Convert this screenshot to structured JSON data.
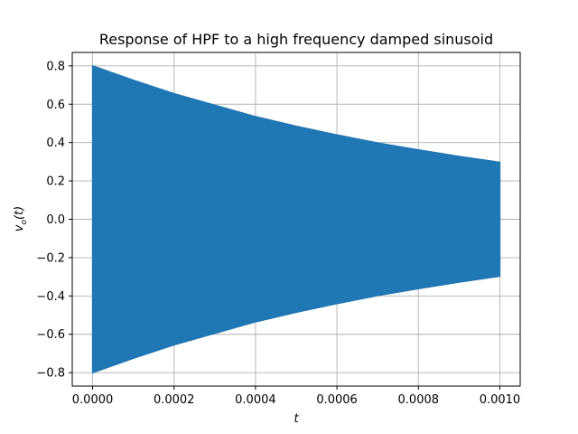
{
  "chart_data": {
    "type": "line",
    "title": "Response of HPF to a high frequency damped sinusoid",
    "xlabel": "t",
    "ylabel": "v_o(t)",
    "xlim": [
      -5e-05,
      0.00105
    ],
    "ylim": [
      -0.87,
      0.87
    ],
    "x_ticks": [
      0.0,
      0.0002,
      0.0004,
      0.0006,
      0.0008,
      0.001
    ],
    "x_tick_labels": [
      "0.0000",
      "0.0002",
      "0.0004",
      "0.0006",
      "0.0008",
      "0.0010"
    ],
    "y_ticks": [
      -0.8,
      -0.6,
      -0.4,
      -0.2,
      0.0,
      0.2,
      0.4,
      0.6,
      0.8
    ],
    "y_tick_labels": [
      "−0.8",
      "−0.6",
      "−0.4",
      "−0.2",
      "0.0",
      "0.2",
      "0.4",
      "0.6",
      "0.8"
    ],
    "grid": true,
    "series": [
      {
        "color": "#1f77b4",
        "x": [
          0.0,
          0.0001,
          0.0002,
          0.0003,
          0.0004,
          0.0005,
          0.0006,
          0.0007,
          0.0008,
          0.0009,
          0.001
        ],
        "upper_envelope": [
          0.8,
          0.725,
          0.655,
          0.595,
          0.535,
          0.485,
          0.44,
          0.398,
          0.362,
          0.328,
          0.297
        ],
        "lower_envelope": [
          -0.8,
          -0.725,
          -0.655,
          -0.595,
          -0.535,
          -0.485,
          -0.44,
          -0.398,
          -0.362,
          -0.328,
          -0.297
        ]
      }
    ]
  }
}
